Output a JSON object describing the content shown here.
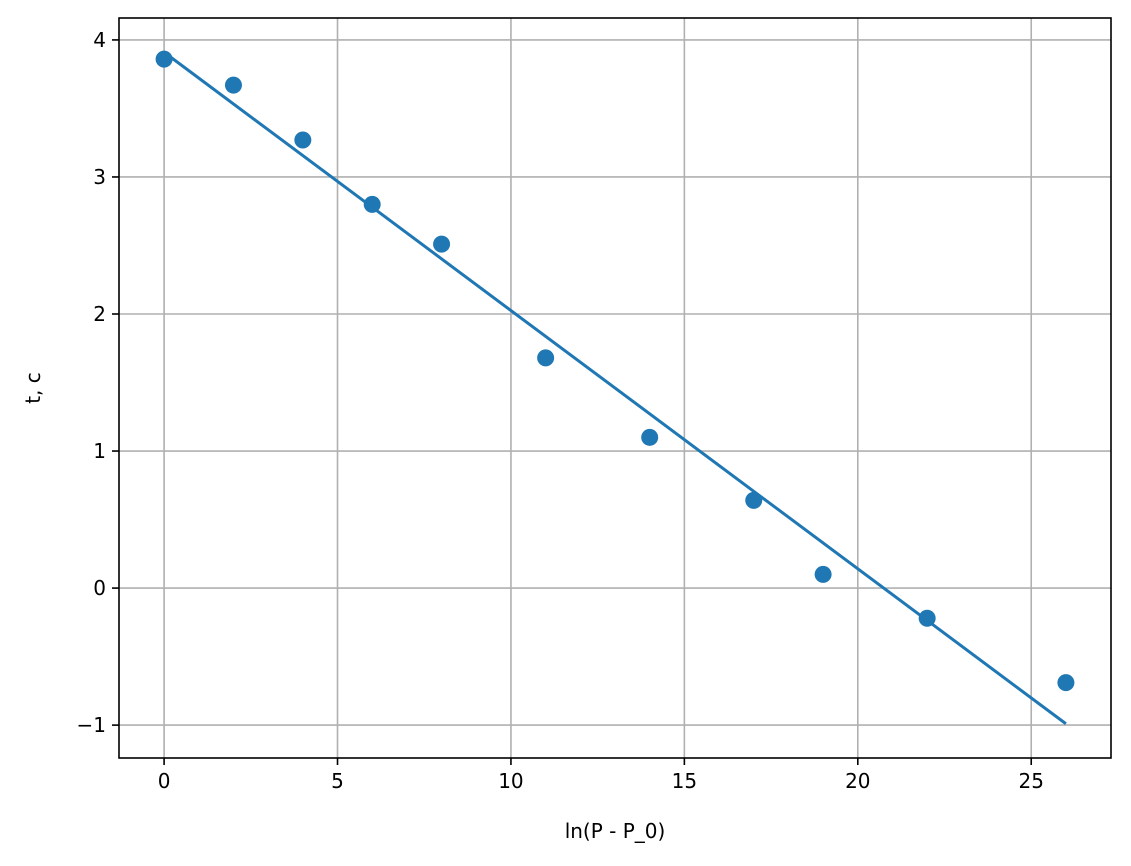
{
  "chart_data": {
    "type": "scatter",
    "title": "",
    "xlabel": "ln(P - P_0)",
    "ylabel": "t, c",
    "xlim": [
      -1.3,
      27.3
    ],
    "ylim": [
      -1.24,
      4.16
    ],
    "x_ticks": [
      0,
      5,
      10,
      15,
      20,
      25
    ],
    "y_ticks": [
      -1,
      0,
      1,
      2,
      3,
      4
    ],
    "x_tick_labels": [
      "0",
      "5",
      "10",
      "15",
      "20",
      "25"
    ],
    "y_tick_labels": [
      "−1",
      "0",
      "1",
      "2",
      "3",
      "4"
    ],
    "grid": true,
    "series": [
      {
        "type": "scatter",
        "color": "#1f77b4",
        "x": [
          0,
          2,
          4,
          6,
          8,
          11,
          14,
          17,
          19,
          22,
          26
        ],
        "y": [
          3.86,
          3.67,
          3.27,
          2.8,
          2.51,
          1.68,
          1.1,
          0.64,
          0.1,
          -0.22,
          -0.69
        ]
      },
      {
        "type": "line",
        "color": "#1f77b4",
        "x": [
          0,
          26
        ],
        "y": [
          3.91,
          -0.99
        ]
      }
    ]
  }
}
